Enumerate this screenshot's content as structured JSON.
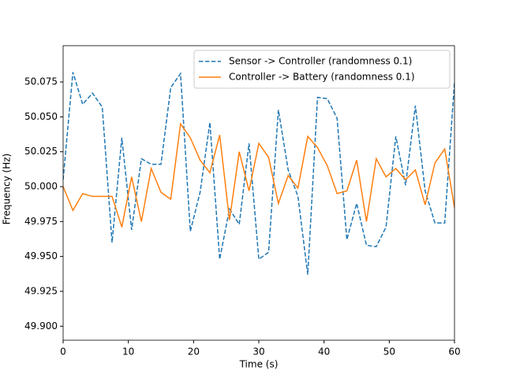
{
  "chart_data": {
    "type": "line",
    "xlabel": "Time (s)",
    "ylabel": "Frequency (Hz)",
    "x": [
      0,
      1.5,
      3,
      4.5,
      6,
      7.5,
      9,
      10.5,
      12,
      13.5,
      15,
      16.5,
      18,
      19.5,
      21,
      22.5,
      24,
      25.5,
      27,
      28.5,
      30,
      31.5,
      33,
      34.5,
      36,
      37.5,
      39,
      40.5,
      42,
      43.5,
      45,
      46.5,
      48,
      49.5,
      51,
      52.5,
      54,
      55.5,
      57,
      58.5,
      60
    ],
    "series": [
      {
        "name": "Sensor -> Controller (randomness 0.1)",
        "color": "#1f77b4",
        "dash": true,
        "values": [
          50.005,
          50.082,
          50.059,
          50.067,
          50.057,
          49.96,
          50.035,
          49.969,
          50.02,
          50.016,
          50.016,
          50.071,
          50.081,
          49.968,
          49.996,
          50.046,
          49.948,
          49.984,
          49.973,
          50.031,
          49.948,
          49.953,
          50.055,
          50.012,
          49.993,
          49.937,
          50.064,
          50.063,
          50.049,
          49.962,
          49.988,
          49.958,
          49.957,
          49.971,
          50.036,
          50.001,
          50.058,
          49.997,
          49.974,
          49.974,
          50.075
        ]
      },
      {
        "name": "Controller -> Battery (randomness 0.1)",
        "color": "#ff7f0e",
        "dash": false,
        "values": [
          50.0,
          49.983,
          49.995,
          49.993,
          49.993,
          49.993,
          49.971,
          50.007,
          49.975,
          50.013,
          49.996,
          49.991,
          50.045,
          50.035,
          50.019,
          50.01,
          50.037,
          49.976,
          50.025,
          49.997,
          50.031,
          50.021,
          49.988,
          50.008,
          49.999,
          50.036,
          50.028,
          50.015,
          49.995,
          49.997,
          50.019,
          49.975,
          50.02,
          50.007,
          50.013,
          50.005,
          50.012,
          49.987,
          50.017,
          50.027,
          49.985
        ]
      }
    ],
    "xlim": [
      0,
      60
    ],
    "xticks": [
      0,
      10,
      20,
      30,
      40,
      50,
      60
    ],
    "ylim": [
      49.89,
      50.101
    ],
    "yticks": [
      {
        "value": 49.9,
        "label": "49.900"
      },
      {
        "value": 49.925,
        "label": "49.925"
      },
      {
        "value": 49.95,
        "label": "49.950"
      },
      {
        "value": 49.975,
        "label": "49.975"
      },
      {
        "value": 50,
        "label": "50.000"
      },
      {
        "value": 50.025,
        "label": "50.025"
      },
      {
        "value": 50.05,
        "label": "50.050"
      },
      {
        "value": 50.075,
        "label": "50.075"
      }
    ],
    "grid": false,
    "legend": "upper right"
  }
}
